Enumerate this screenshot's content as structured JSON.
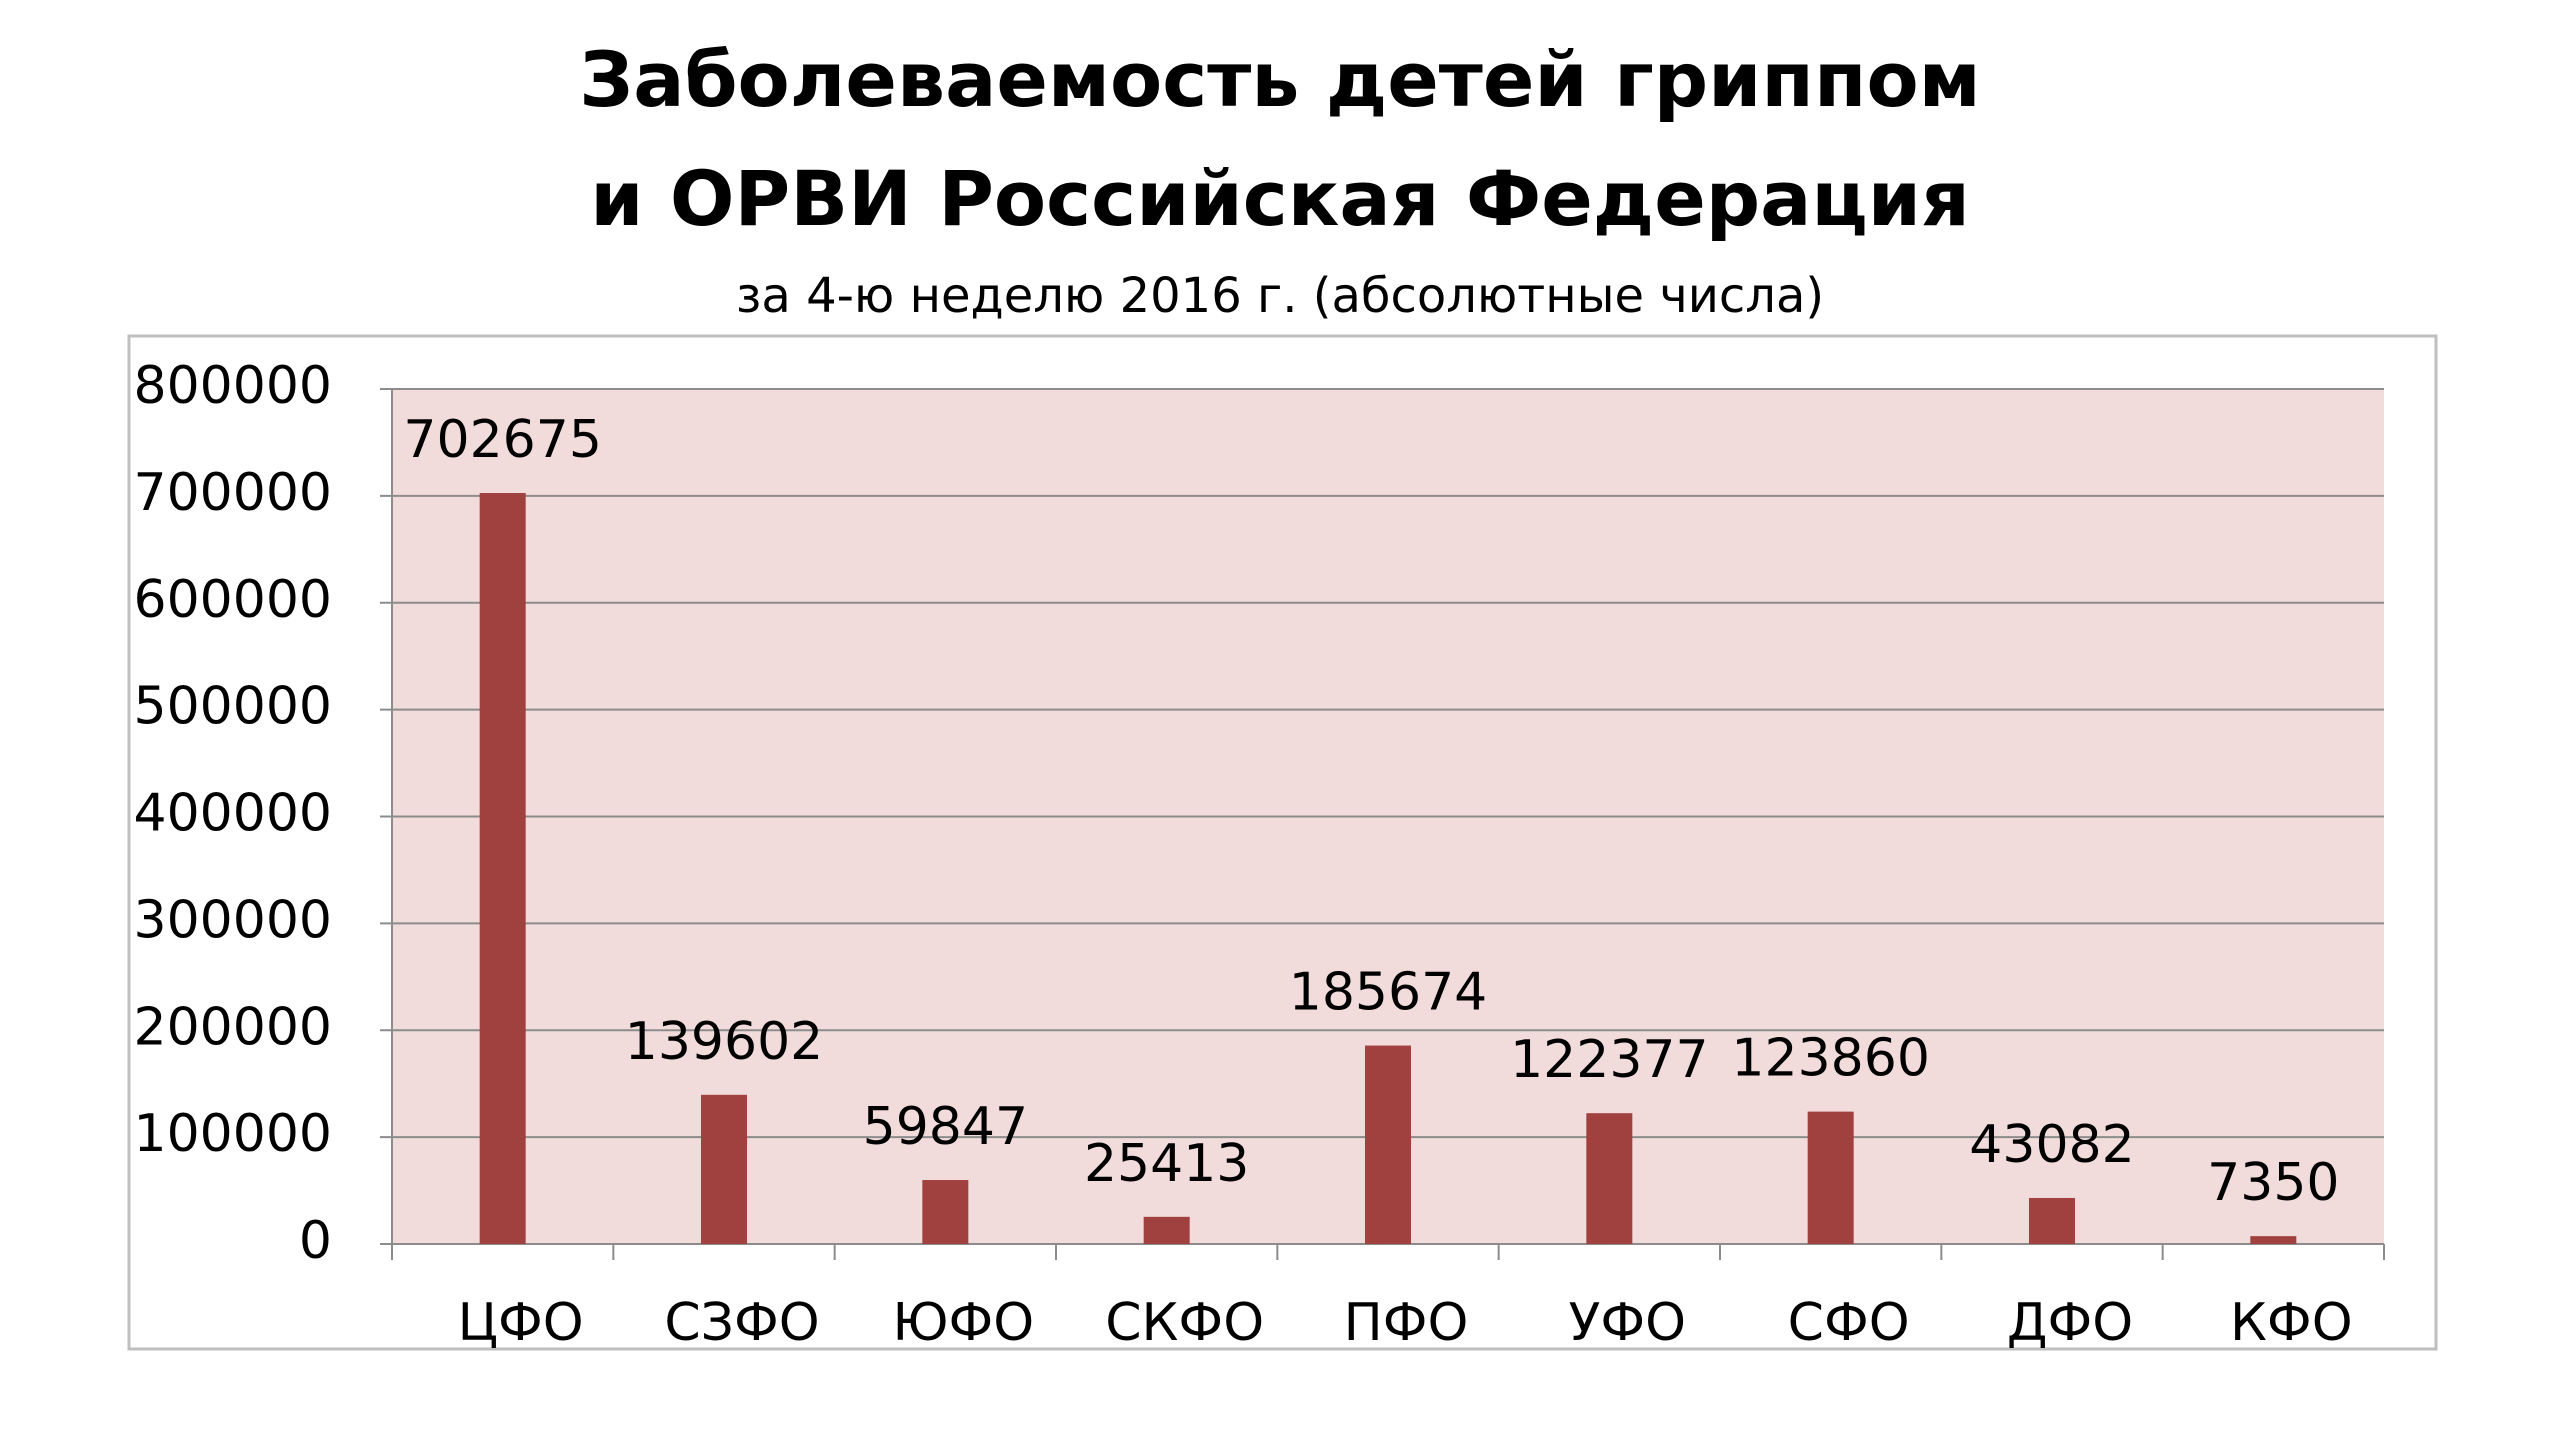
{
  "chart_data": {
    "type": "bar",
    "title": "Заболеваемость детей гриппом",
    "title_line2": "и ОРВИ Российская Федерация",
    "subtitle": "за 4-ю неделю 2016 г. (абсолютные числа)",
    "categories": [
      "ЦФО",
      "СЗФО",
      "ЮФО",
      "СКФО",
      "ПФО",
      "УФО",
      "СФО",
      "ДФО",
      "КФО"
    ],
    "values": [
      702675,
      139602,
      59847,
      25413,
      185674,
      122377,
      123860,
      43082,
      7350
    ],
    "color": "#a0403f",
    "ylim": [
      0,
      800000
    ],
    "yticks": [
      0,
      100000,
      200000,
      300000,
      400000,
      500000,
      600000,
      700000,
      800000
    ],
    "grid": true
  }
}
